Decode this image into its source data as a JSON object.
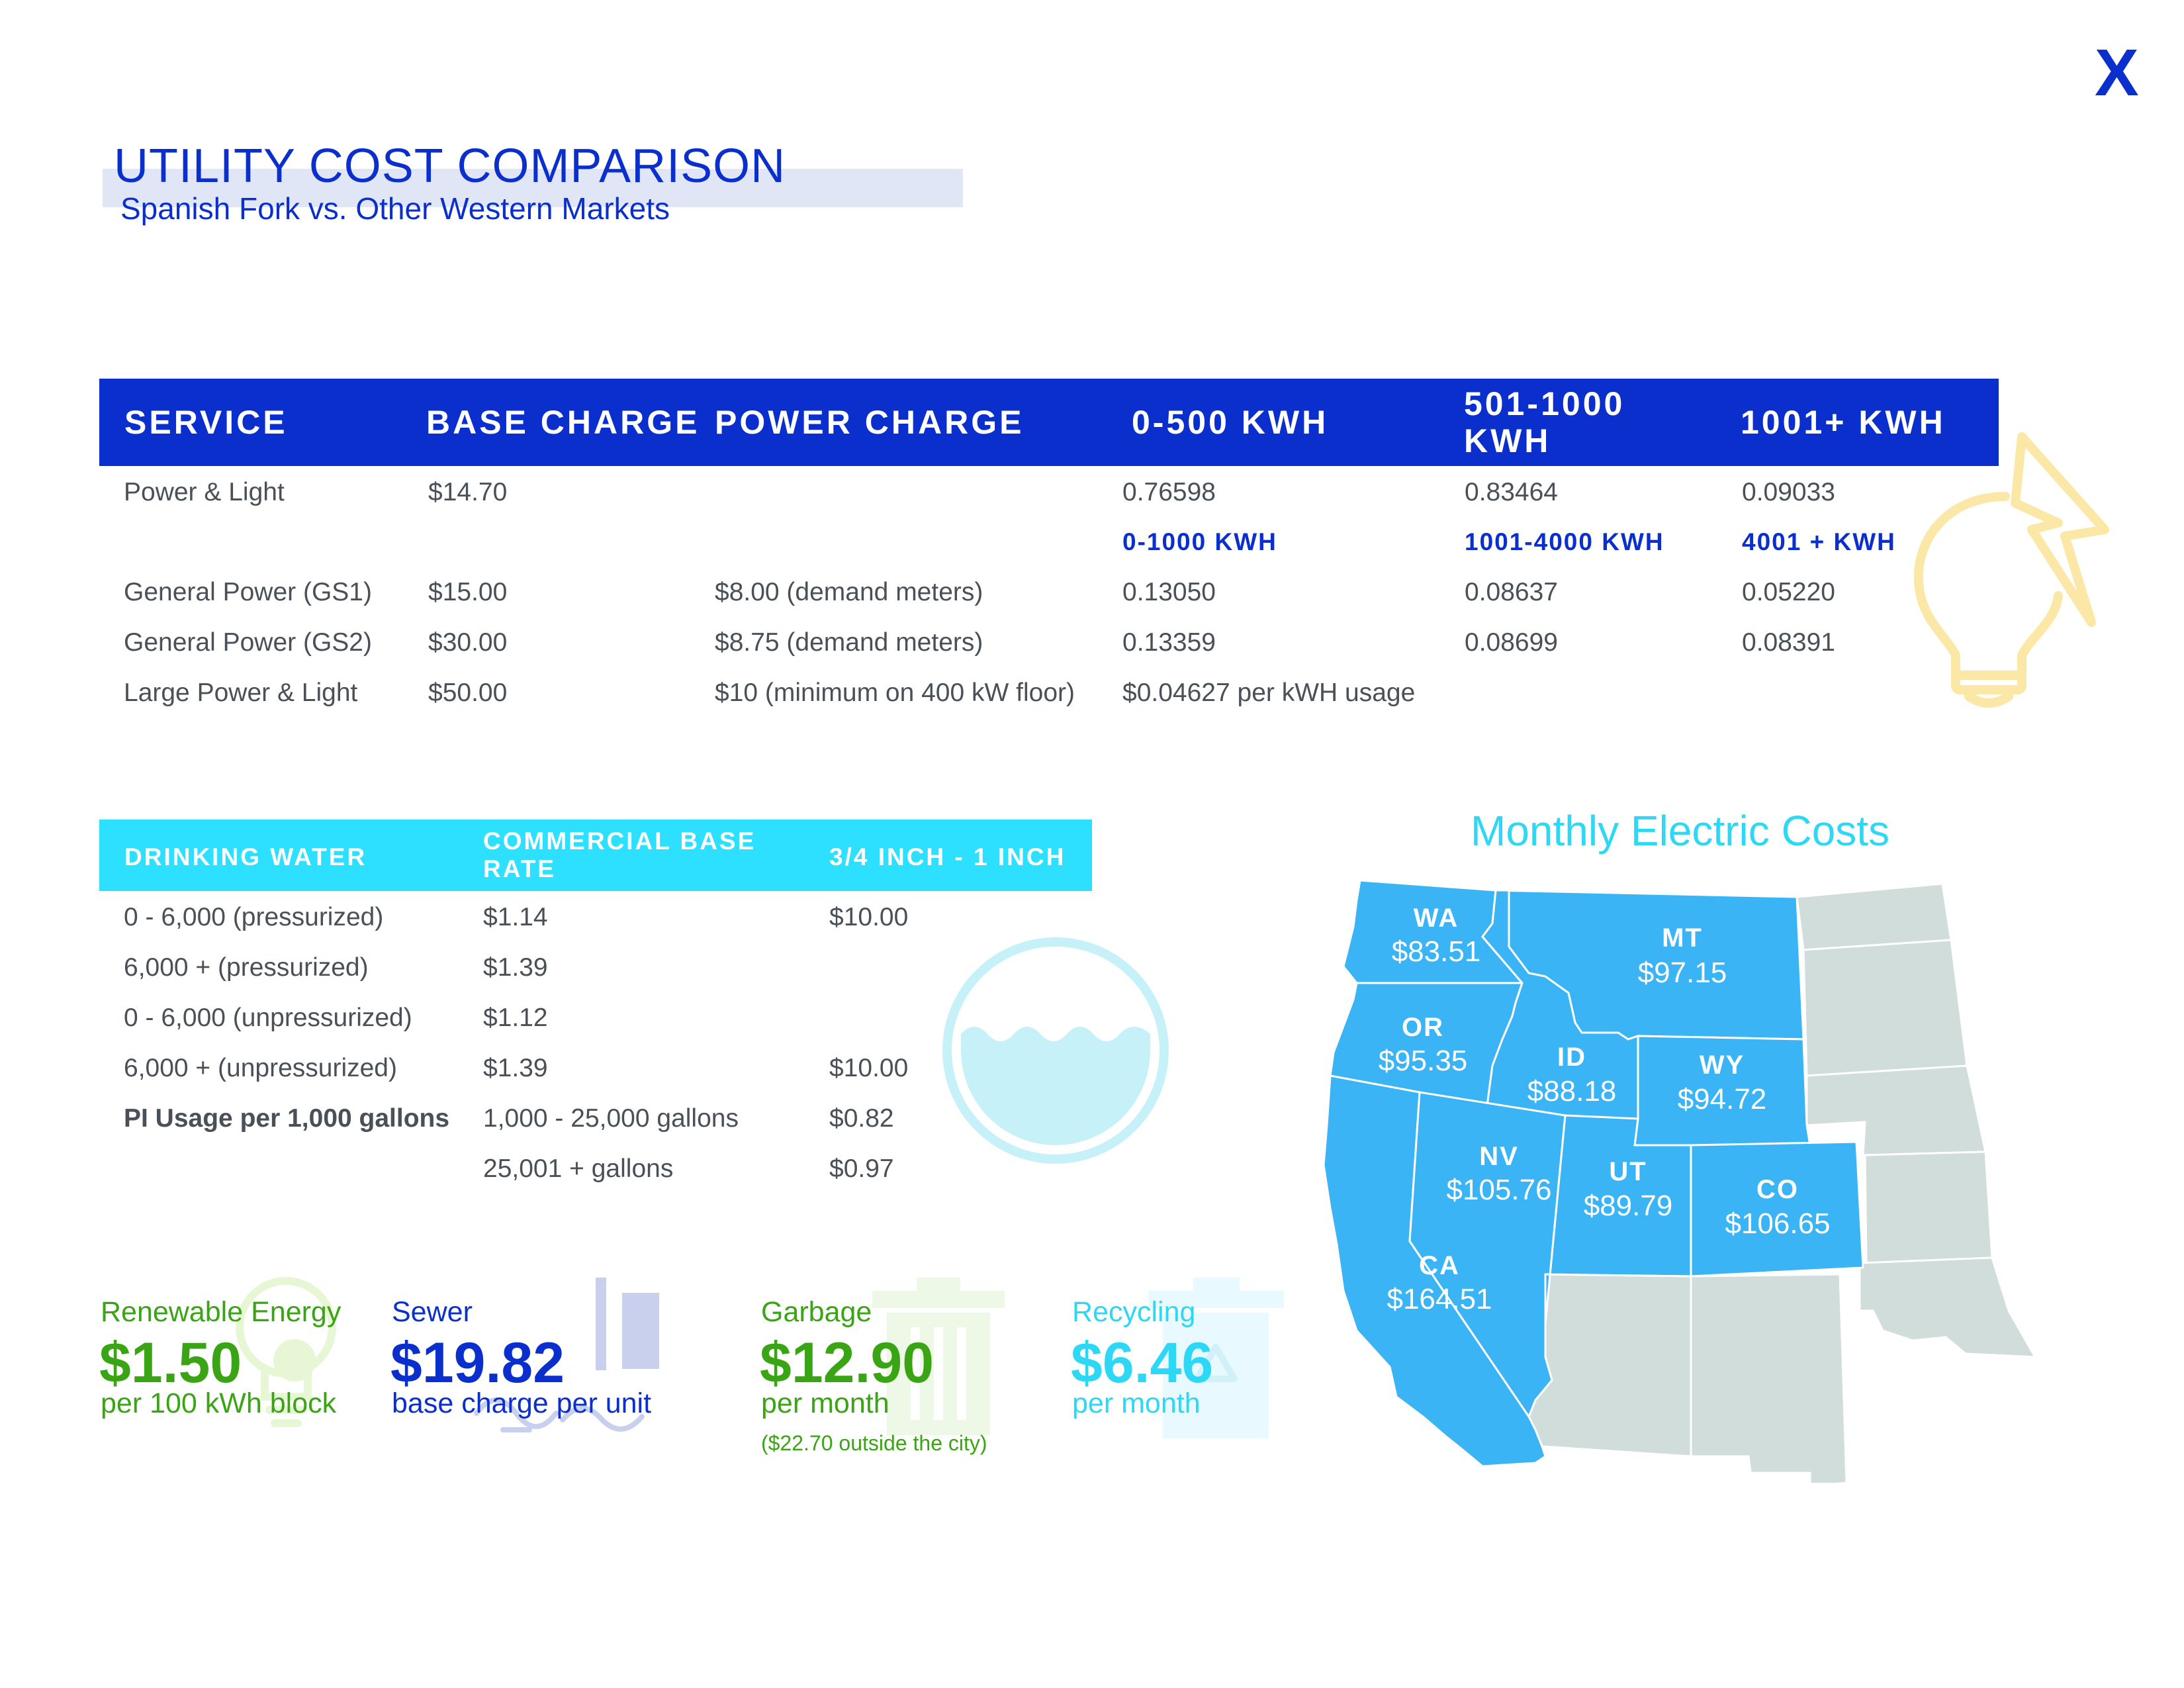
{
  "brand": {
    "mark": "X"
  },
  "header": {
    "title": "UTILITY COST COMPARISON",
    "subtitle": "Spanish Fork vs. Other Western Markets"
  },
  "power_table": {
    "headers": [
      "SERVICE",
      "BASE CHARGE",
      "POWER CHARGE",
      "0-500 KWH",
      "501-1000 KWH",
      "1001+ KWH"
    ],
    "rows": [
      {
        "service": "Power & Light",
        "base": "$14.70",
        "power": "",
        "t1": "0.76598",
        "t2": "0.83464",
        "t3": "0.09033"
      },
      {
        "service": "General Power (GS1)",
        "base": "$15.00",
        "power": "$8.00 (demand meters)",
        "t1": "0.13050",
        "t2": "0.08637",
        "t3": "0.05220"
      },
      {
        "service": "General Power (GS2)",
        "base": "$30.00",
        "power": "$8.75 (demand meters)",
        "t1": "0.13359",
        "t2": "0.08699",
        "t3": "0.08391"
      },
      {
        "service": "Large Power & Light",
        "base": "$50.00",
        "power": "$10 (minimum on 400 kW floor)",
        "t1": "$0.04627 per  kWH usage",
        "t2": "",
        "t3": ""
      }
    ],
    "subheaders": [
      "0-1000 KWH",
      "1001-4000 KWH",
      "4001 + KWH"
    ]
  },
  "water_table": {
    "headers": [
      "DRINKING WATER",
      "COMMERCIAL BASE RATE",
      "3/4 INCH - 1 INCH"
    ],
    "rows": [
      {
        "label": "0 - 6,000 (pressurized)",
        "rate": "$1.14",
        "size": "$10.00"
      },
      {
        "label": "6,000 + (pressurized)",
        "rate": "$1.39",
        "size": ""
      },
      {
        "label": "0 - 6,000 (unpressurized)",
        "rate": "$1.12",
        "size": ""
      },
      {
        "label": "6,000 + (unpressurized)",
        "rate": "$1.39",
        "size": "$10.00"
      },
      {
        "label": "PI Usage per 1,000 gallons",
        "rate": "1,000 - 25,000 gallons",
        "size": "$0.82"
      },
      {
        "label": "",
        "rate": "25,001 + gallons",
        "size": "$0.97"
      }
    ]
  },
  "stats": {
    "renewable": {
      "label": "Renewable Energy",
      "value": "$1.50",
      "note": "per 100 kWh block"
    },
    "sewer": {
      "label": "Sewer",
      "value": "$19.82",
      "note": "base charge per unit"
    },
    "garbage": {
      "label": "Garbage",
      "value": "$12.90",
      "note": "per month",
      "extra": "($22.70 outside the city)"
    },
    "recycling": {
      "label": "Recycling",
      "value": "$6.46",
      "note": "per month"
    }
  },
  "map": {
    "title": "Monthly Electric Costs",
    "states": [
      {
        "code": "WA",
        "cost": "$83.51"
      },
      {
        "code": "MT",
        "cost": "$97.15"
      },
      {
        "code": "OR",
        "cost": "$95.35"
      },
      {
        "code": "ID",
        "cost": "$88.18"
      },
      {
        "code": "WY",
        "cost": "$94.72"
      },
      {
        "code": "NV",
        "cost": "$105.76"
      },
      {
        "code": "UT",
        "cost": "$89.79"
      },
      {
        "code": "CO",
        "cost": "$106.65"
      },
      {
        "code": "CA",
        "cost": "$164.51"
      }
    ],
    "colors": {
      "highlight": "#3bb4f6",
      "other": "#d1ddda",
      "border": "#ffffff"
    }
  },
  "colors": {
    "primary_blue": "#0a2fcc",
    "cyan": "#2cd8f6",
    "green": "#3aa514",
    "text": "#4a5057"
  }
}
